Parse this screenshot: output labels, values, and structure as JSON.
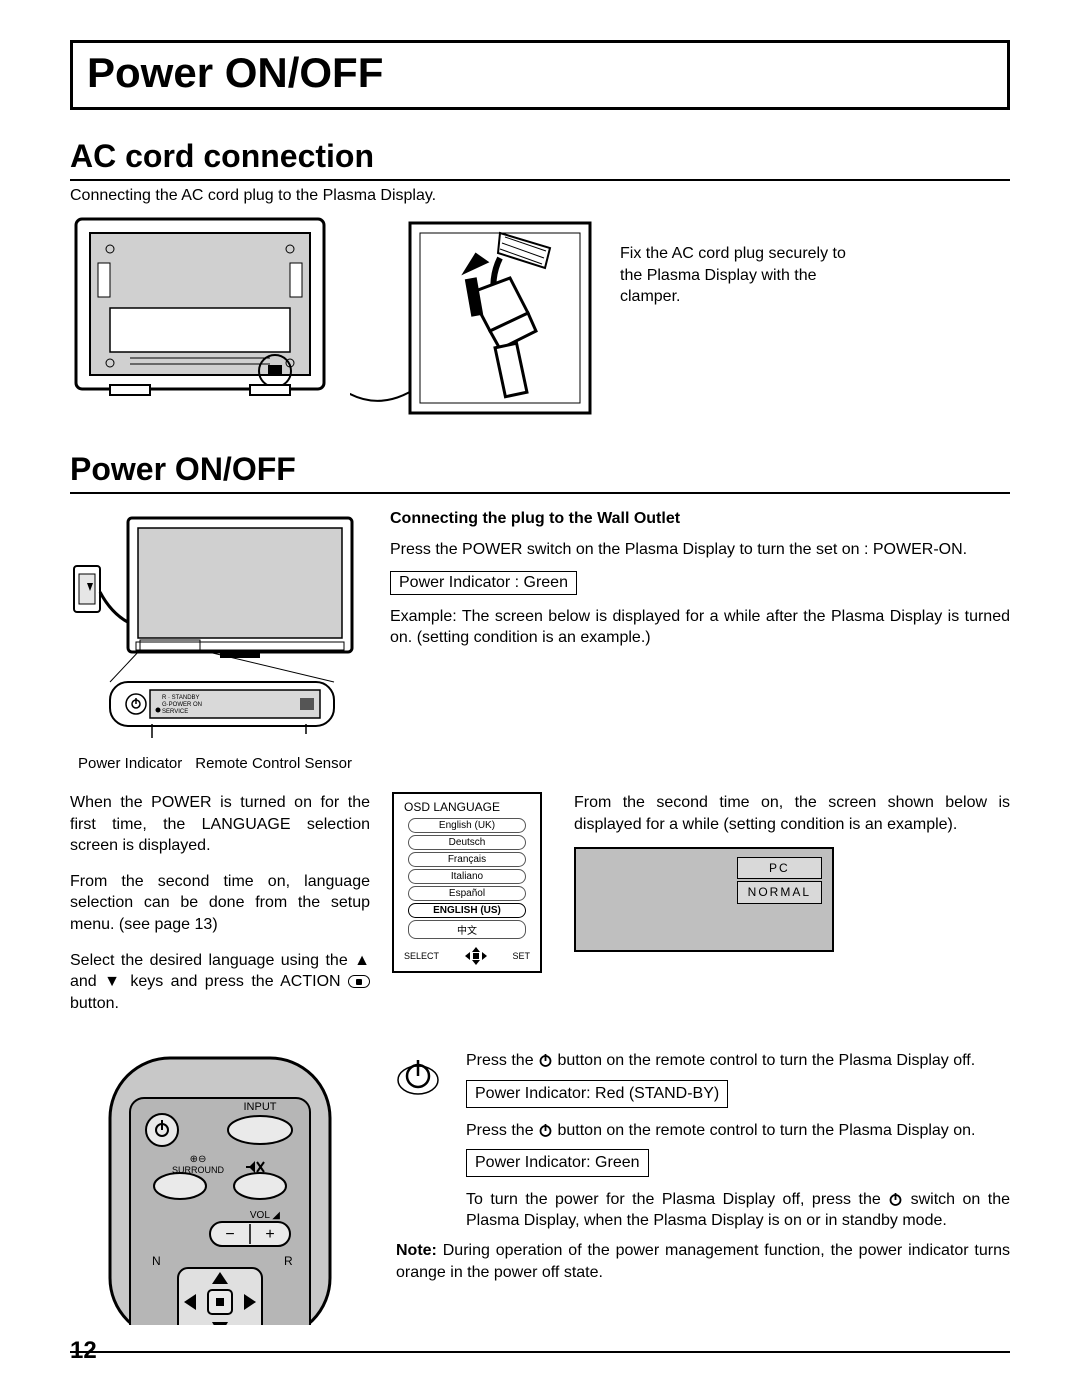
{
  "title": "Power ON/OFF",
  "section1": {
    "heading": "AC cord connection",
    "intro": "Connecting the AC cord plug to the Plasma Display.",
    "clamp_caption": "Fix the AC cord plug securely to the Plasma Display with the clamper."
  },
  "section2": {
    "heading": "Power ON/OFF",
    "subhead": "Connecting the plug to the Wall Outlet",
    "p1": "Press the POWER switch on the Plasma Display to turn the set on : POWER-ON.",
    "indicator_green": "Power Indicator : Green",
    "example": "Example: The screen below is displayed for a while after the Plasma Display is turned on. (setting condition is an example.)",
    "callout_power_indicator": "Power Indicator",
    "callout_remote_sensor": "Remote Control Sensor"
  },
  "osd": {
    "title": "OSD  LANGUAGE",
    "items": [
      "English (UK)",
      "Deutsch",
      "Français",
      "Italiano",
      "Español",
      "ENGLISH (US)",
      "中文"
    ],
    "selected_index": 5,
    "select_label": "SELECT",
    "set_label": "SET"
  },
  "mid_left": {
    "p1": "When the POWER is turned on for the first time, the LANGUAGE selection screen is displayed.",
    "p2": "From the second time on, language selection can be done from the setup menu. (see page 13)",
    "p3_a": "Select the desired language using the ",
    "p3_b": " and ",
    "p3_c": " keys and press the ACTION ",
    "p3_d": " button."
  },
  "mid_right": {
    "p1": "From the second time on, the screen shown below is displayed for a while (setting condition is an example).",
    "badge1": "PC",
    "badge2": "NORMAL"
  },
  "remote": {
    "p1a": "Press the ",
    "p1b": " button on the remote control to turn the Plasma Display off.",
    "ind_red": "Power Indicator: Red (STAND-BY)",
    "p2a": "Press the ",
    "p2b": " button on the remote control to turn the Plasma Display on.",
    "ind_green2": "Power Indicator: Green",
    "p3a": "To turn the power for the Plasma Display off, press the ",
    "p3b": " switch on the Plasma Display, when the Plasma Display is on or in standby mode.",
    "note_label": "Note:",
    "note_text": " During operation of the power management function, the power indicator turns orange in the power off state.",
    "labels": {
      "input": "INPUT",
      "surround": "SURROUND",
      "vol": "VOL",
      "n": "N",
      "r": "R"
    }
  },
  "page_number": "12",
  "colors": {
    "black": "#000000",
    "grey_fill": "#bfbfbf",
    "light_grey": "#d9d9d9",
    "remote_grey": "#c8c8c8"
  }
}
